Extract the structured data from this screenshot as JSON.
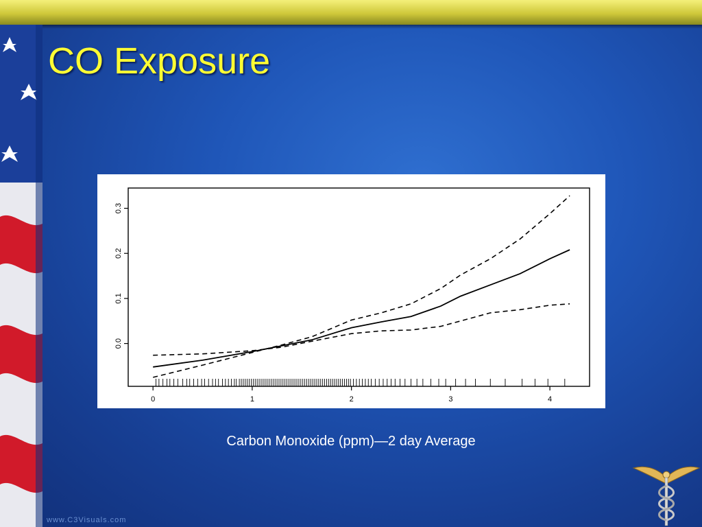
{
  "slide": {
    "title": "CO Exposure",
    "caption": "Carbon Monoxide (ppm)—2 day Average",
    "watermark": "www.C3Visuals.com",
    "colors": {
      "title": "#ffff33",
      "background": "#1f56b8",
      "band": "#d8d24a"
    }
  },
  "decor": {
    "left_art": "flag-stripes-stars",
    "corner_art": "caduceus-icon"
  },
  "chart_data": {
    "type": "line",
    "title": "",
    "xlabel": "",
    "ylabel": "",
    "xlim": [
      -0.25,
      4.4
    ],
    "ylim": [
      -0.095,
      0.345
    ],
    "x_ticks": [
      0,
      1,
      2,
      3,
      4
    ],
    "x_tick_labels": [
      "0",
      "1",
      "2",
      "3",
      "4"
    ],
    "y_ticks": [
      0.0,
      0.1,
      0.2,
      0.3
    ],
    "y_tick_labels": [
      "0.0",
      "0.1",
      "0.2",
      "0.3"
    ],
    "grid": false,
    "legend": "none",
    "series": [
      {
        "style": "solid",
        "x": [
          0.0,
          0.5,
          1.0,
          1.3,
          1.6,
          2.0,
          2.3,
          2.6,
          2.9,
          3.1,
          3.4,
          3.7,
          4.0,
          4.2
        ],
        "y": [
          -0.052,
          -0.037,
          -0.018,
          -0.005,
          0.008,
          0.035,
          0.048,
          0.06,
          0.083,
          0.105,
          0.13,
          0.155,
          0.188,
          0.208
        ]
      },
      {
        "style": "dashed",
        "x": [
          0.0,
          0.5,
          1.0,
          1.3,
          1.6,
          2.0,
          2.3,
          2.6,
          2.9,
          3.1,
          3.4,
          3.7,
          4.0,
          4.2
        ],
        "y": [
          -0.075,
          -0.048,
          -0.02,
          -0.003,
          0.015,
          0.052,
          0.068,
          0.088,
          0.122,
          0.152,
          0.188,
          0.232,
          0.288,
          0.328
        ]
      },
      {
        "style": "dashed",
        "x": [
          0.0,
          0.5,
          1.0,
          1.3,
          1.6,
          2.0,
          2.3,
          2.6,
          2.9,
          3.1,
          3.4,
          3.7,
          4.0,
          4.2
        ],
        "y": [
          -0.026,
          -0.023,
          -0.016,
          -0.008,
          0.005,
          0.022,
          0.028,
          0.03,
          0.038,
          0.05,
          0.068,
          0.075,
          0.085,
          0.088
        ]
      }
    ],
    "rug": [
      0.03,
      0.06,
      0.1,
      0.14,
      0.17,
      0.21,
      0.25,
      0.3,
      0.34,
      0.37,
      0.41,
      0.45,
      0.49,
      0.52,
      0.56,
      0.6,
      0.63,
      0.66,
      0.7,
      0.73,
      0.76,
      0.79,
      0.82,
      0.84,
      0.87,
      0.89,
      0.91,
      0.93,
      0.95,
      0.97,
      0.99,
      1.01,
      1.03,
      1.05,
      1.07,
      1.09,
      1.11,
      1.13,
      1.15,
      1.17,
      1.19,
      1.21,
      1.23,
      1.25,
      1.27,
      1.29,
      1.31,
      1.33,
      1.35,
      1.37,
      1.39,
      1.41,
      1.43,
      1.45,
      1.47,
      1.49,
      1.51,
      1.53,
      1.55,
      1.57,
      1.59,
      1.61,
      1.63,
      1.65,
      1.67,
      1.69,
      1.71,
      1.73,
      1.75,
      1.77,
      1.79,
      1.81,
      1.83,
      1.85,
      1.87,
      1.89,
      1.91,
      1.93,
      1.95,
      1.97,
      1.99,
      2.02,
      2.05,
      2.08,
      2.11,
      2.14,
      2.17,
      2.2,
      2.24,
      2.28,
      2.32,
      2.36,
      2.4,
      2.44,
      2.49,
      2.54,
      2.6,
      2.66,
      2.72,
      2.8,
      2.88,
      2.95,
      3.05,
      3.15,
      3.25,
      3.4,
      3.55,
      3.72,
      3.85,
      3.98,
      4.15
    ]
  }
}
